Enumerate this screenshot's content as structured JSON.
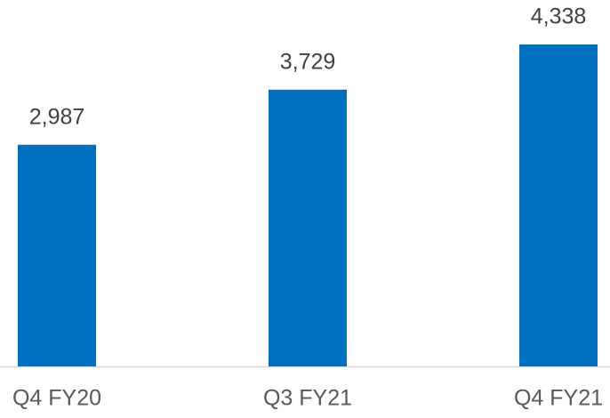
{
  "chart_data": {
    "type": "bar",
    "categories": [
      "Q4 FY20",
      "Q3 FY21",
      "Q4 FY21"
    ],
    "values": [
      2987,
      3729,
      4338
    ],
    "value_labels": [
      "2,987",
      "3,729",
      "4,338"
    ],
    "color": "#0070c0"
  }
}
